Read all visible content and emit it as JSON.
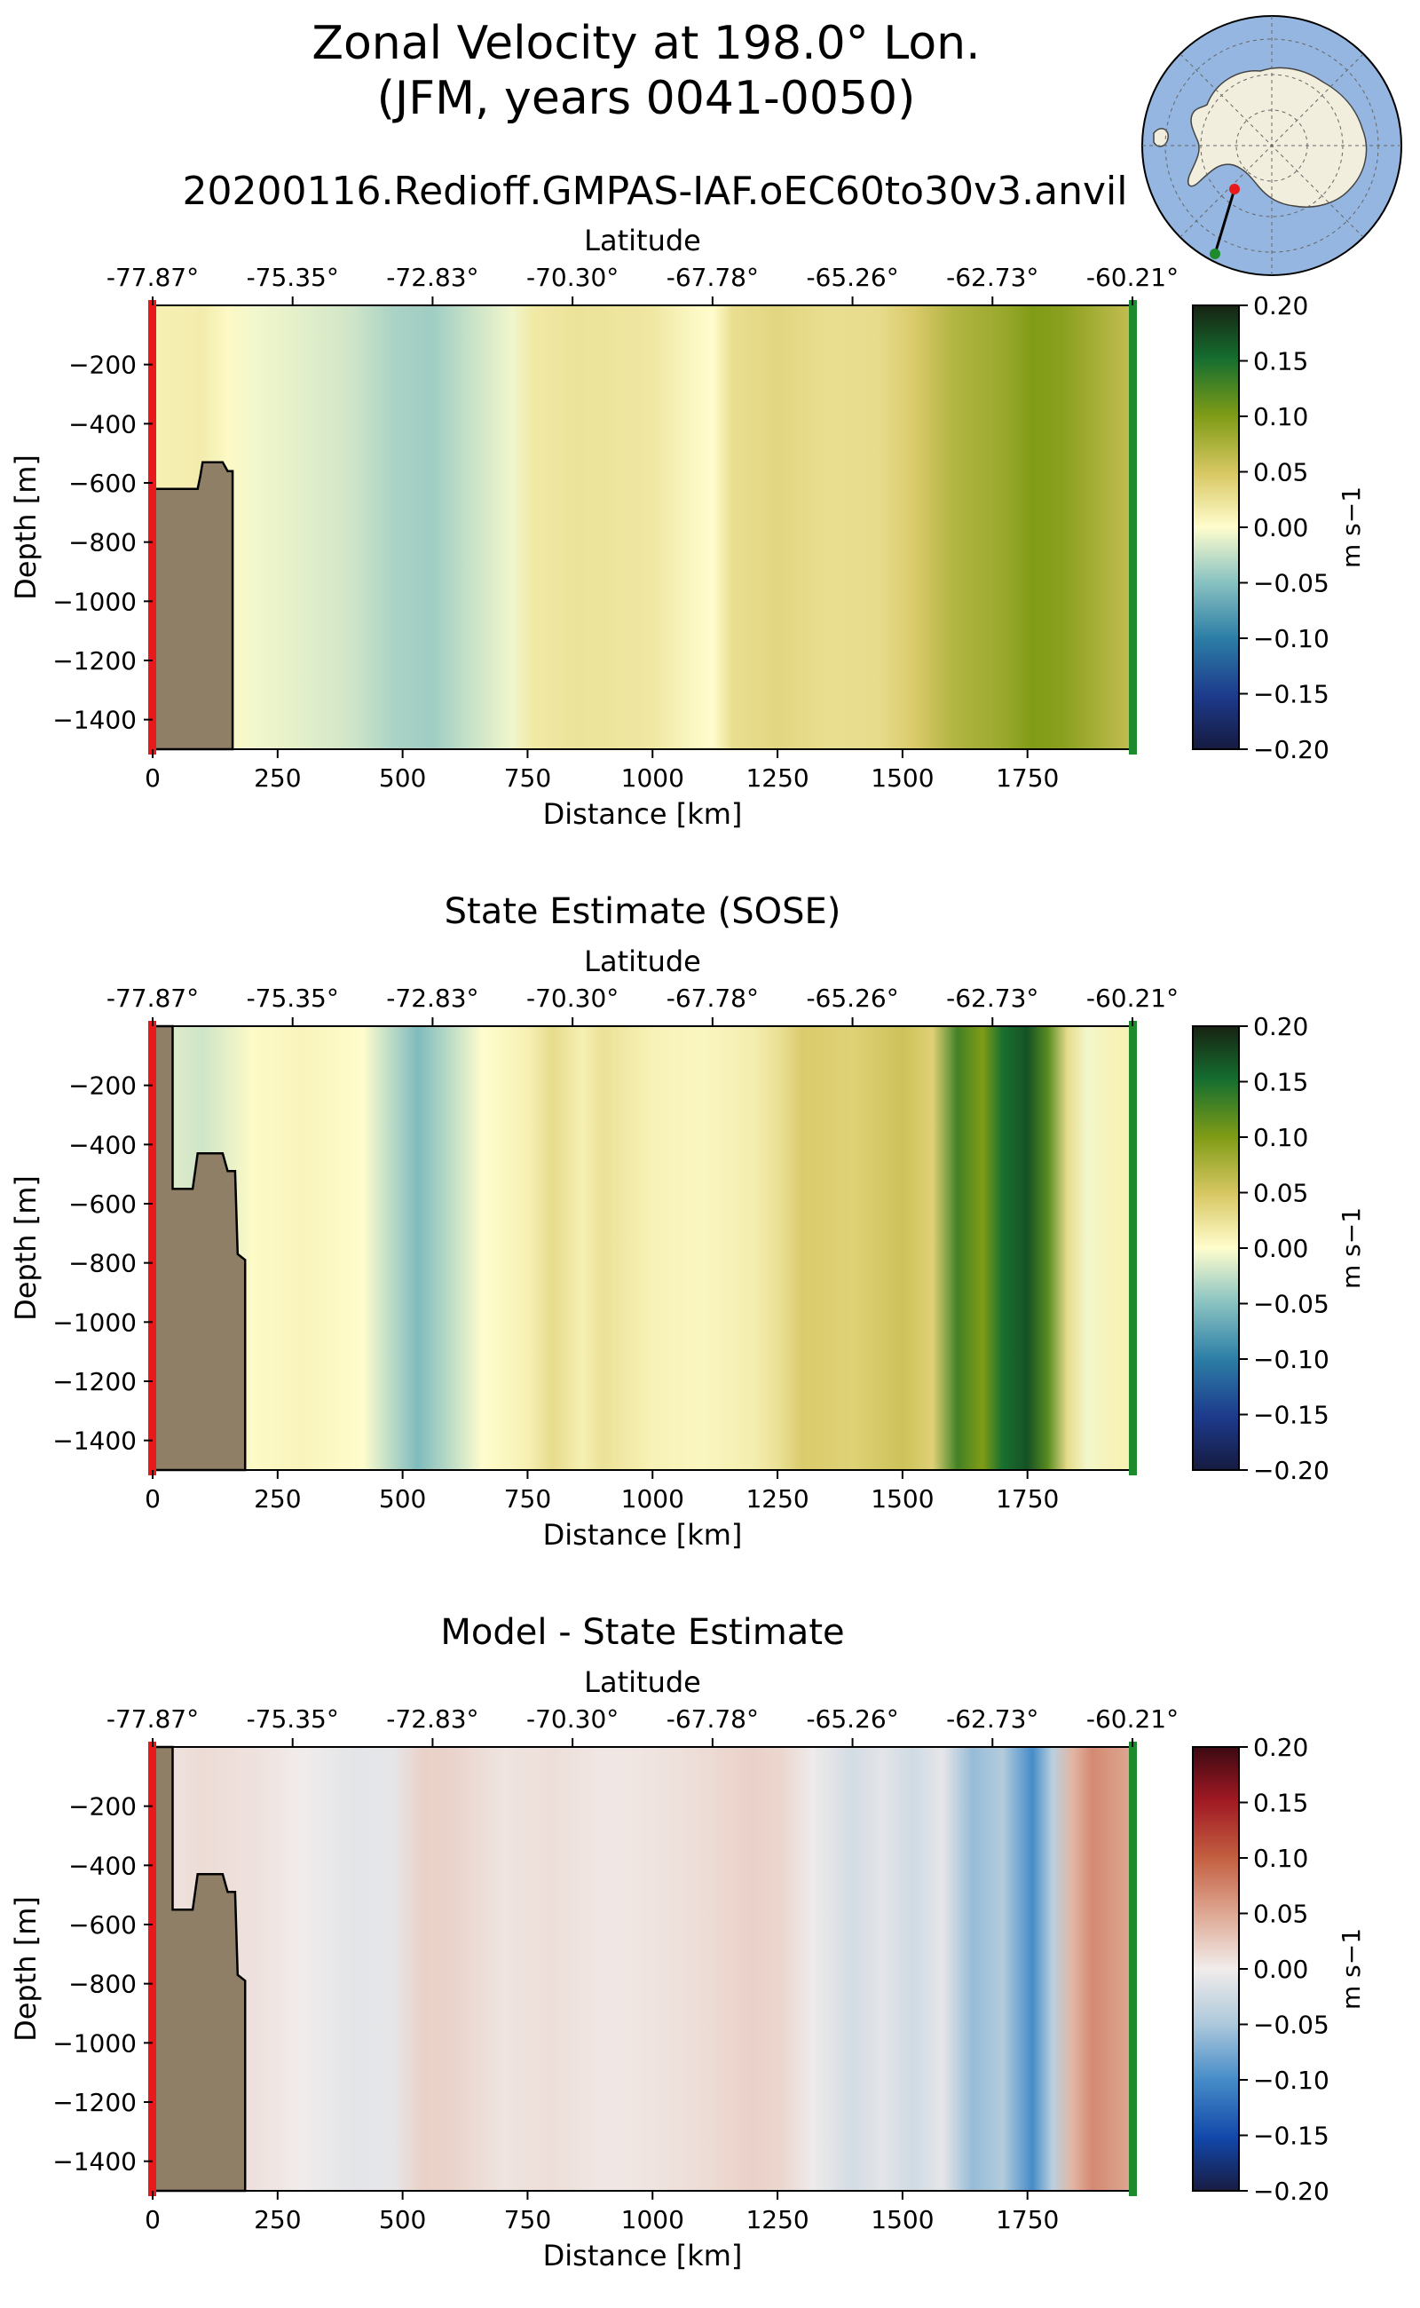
{
  "figure": {
    "title_line1": "Zonal Velocity at 198.0° Lon.",
    "title_line2": "(JFM, years 0041-0050)",
    "run_name": "20200116.Redioff.GMPAS-IAF.oEC60to30v3.anvil"
  },
  "inset_map": {
    "description_icon": "antarctica-map-icon",
    "ocean_color": "#95b6e0",
    "land_color": "#f2eedd",
    "start_marker_color": "#e8191b",
    "end_marker_color": "#1d8a2c"
  },
  "chart_data": [
    {
      "type": "heatmap",
      "title": "",
      "xlabel": "Distance [km]",
      "ylabel": "Depth [m]",
      "top_axis_label": "Latitude",
      "xlim": [
        0,
        1960
      ],
      "ylim": [
        -1500,
        0
      ],
      "x_ticks": [
        0,
        250,
        500,
        750,
        1000,
        1250,
        1500,
        1750
      ],
      "x_tick_labels": [
        "0",
        "250",
        "500",
        "750",
        "1000",
        "1250",
        "1500",
        "1750"
      ],
      "y_ticks": [
        -200,
        -400,
        -600,
        -800,
        -1000,
        -1200,
        -1400
      ],
      "y_tick_labels": [
        "−200",
        "−400",
        "−600",
        "−800",
        "−1000",
        "−1200",
        "−1400"
      ],
      "lat_ticks_km": [
        0,
        280,
        560,
        840,
        1120,
        1400,
        1680,
        1960
      ],
      "lat_tick_labels": [
        "-77.87°",
        "-75.35°",
        "-72.83°",
        "-70.30°",
        "-67.78°",
        "-65.26°",
        "-62.73°",
        "-60.21°"
      ],
      "colorbar": {
        "label": "m s−1",
        "min": -0.2,
        "max": 0.2,
        "tick_labels": [
          "0.20",
          "0.15",
          "0.10",
          "0.05",
          "0.00",
          "−0.05",
          "−0.10",
          "−0.15",
          "−0.20"
        ],
        "colormap": "delta"
      },
      "velocity_profile": {
        "distance_km": [
          0,
          100,
          150,
          200,
          300,
          400,
          480,
          560,
          640,
          720,
          760,
          850,
          1000,
          1080,
          1120,
          1160,
          1250,
          1350,
          1450,
          1520,
          1600,
          1700,
          1760,
          1820,
          1900,
          1960
        ],
        "value_ms": [
          0.012,
          0.015,
          0.004,
          -0.005,
          -0.012,
          -0.02,
          -0.035,
          -0.04,
          -0.022,
          -0.006,
          0.018,
          0.024,
          0.02,
          0.005,
          0.0,
          0.028,
          0.035,
          0.028,
          0.03,
          0.045,
          0.07,
          0.085,
          0.1,
          0.095,
          0.075,
          0.06
        ]
      },
      "bathymetry": {
        "distance_km": [
          0,
          0,
          10,
          10,
          90,
          95,
          100,
          140,
          150,
          150,
          160,
          160
        ],
        "depth_m": [
          -1500,
          -620,
          -620,
          -620,
          -620,
          -580,
          -530,
          -530,
          -560,
          -560,
          -560,
          -1500
        ]
      }
    },
    {
      "type": "heatmap",
      "title": "State Estimate (SOSE)",
      "xlabel": "Distance [km]",
      "ylabel": "Depth [m]",
      "top_axis_label": "Latitude",
      "xlim": [
        0,
        1960
      ],
      "ylim": [
        -1500,
        0
      ],
      "x_ticks": [
        0,
        250,
        500,
        750,
        1000,
        1250,
        1500,
        1750
      ],
      "x_tick_labels": [
        "0",
        "250",
        "500",
        "750",
        "1000",
        "1250",
        "1500",
        "1750"
      ],
      "y_ticks": [
        -200,
        -400,
        -600,
        -800,
        -1000,
        -1200,
        -1400
      ],
      "y_tick_labels": [
        "−200",
        "−400",
        "−600",
        "−800",
        "−1000",
        "−1200",
        "−1400"
      ],
      "lat_ticks_km": [
        0,
        280,
        560,
        840,
        1120,
        1400,
        1680,
        1960
      ],
      "lat_tick_labels": [
        "-77.87°",
        "-75.35°",
        "-72.83°",
        "-70.30°",
        "-67.78°",
        "-65.26°",
        "-62.73°",
        "-60.21°"
      ],
      "colorbar": {
        "label": "m s−1",
        "min": -0.2,
        "max": 0.2,
        "tick_labels": [
          "0.20",
          "0.15",
          "0.10",
          "0.05",
          "0.00",
          "−0.05",
          "−0.10",
          "−0.15",
          "−0.20"
        ],
        "colormap": "delta"
      },
      "velocity_profile": {
        "distance_km": [
          0,
          100,
          200,
          300,
          420,
          480,
          530,
          590,
          660,
          750,
          800,
          860,
          900,
          1000,
          1100,
          1200,
          1250,
          1300,
          1400,
          1500,
          1560,
          1610,
          1660,
          1700,
          1750,
          1790,
          1830,
          1870,
          1920,
          1960
        ],
        "value_ms": [
          -0.01,
          -0.02,
          0.003,
          0.008,
          0.0,
          -0.03,
          -0.055,
          -0.03,
          0.0,
          0.012,
          0.03,
          0.012,
          0.025,
          0.01,
          0.006,
          0.014,
          0.025,
          0.045,
          0.04,
          0.055,
          0.04,
          0.13,
          0.1,
          0.15,
          0.17,
          0.12,
          0.03,
          -0.005,
          0.01,
          0.012
        ]
      },
      "bathymetry": {
        "distance_km": [
          0,
          0,
          40,
          40,
          80,
          90,
          140,
          150,
          165,
          170,
          185,
          185
        ],
        "depth_m": [
          -1500,
          0,
          0,
          -550,
          -550,
          -430,
          -430,
          -490,
          -490,
          -770,
          -790,
          -1500
        ]
      }
    },
    {
      "type": "heatmap",
      "title": "Model - State Estimate",
      "xlabel": "Distance [km]",
      "ylabel": "Depth [m]",
      "top_axis_label": "Latitude",
      "xlim": [
        0,
        1960
      ],
      "ylim": [
        -1500,
        0
      ],
      "x_ticks": [
        0,
        250,
        500,
        750,
        1000,
        1250,
        1500,
        1750
      ],
      "x_tick_labels": [
        "0",
        "250",
        "500",
        "750",
        "1000",
        "1250",
        "1500",
        "1750"
      ],
      "y_ticks": [
        -200,
        -400,
        -600,
        -800,
        -1000,
        -1200,
        -1400
      ],
      "y_tick_labels": [
        "−200",
        "−400",
        "−600",
        "−800",
        "−1000",
        "−1200",
        "−1400"
      ],
      "lat_ticks_km": [
        0,
        280,
        560,
        840,
        1120,
        1400,
        1680,
        1960
      ],
      "lat_tick_labels": [
        "-77.87°",
        "-75.35°",
        "-72.83°",
        "-70.30°",
        "-67.78°",
        "-65.26°",
        "-62.73°",
        "-60.21°"
      ],
      "colorbar": {
        "label": "m s−1",
        "min": -0.2,
        "max": 0.2,
        "tick_labels": [
          "0.20",
          "0.15",
          "0.10",
          "0.05",
          "0.00",
          "−0.05",
          "−0.10",
          "−0.15",
          "−0.20"
        ],
        "colormap": "balance"
      },
      "velocity_profile": {
        "distance_km": [
          0,
          100,
          200,
          300,
          400,
          480,
          540,
          600,
          700,
          800,
          900,
          1000,
          1100,
          1200,
          1260,
          1320,
          1400,
          1460,
          1520,
          1580,
          1640,
          1700,
          1760,
          1800,
          1840,
          1880,
          1920,
          1960
        ],
        "value_ms": [
          0.005,
          0.012,
          0.008,
          0.0,
          -0.01,
          -0.008,
          0.02,
          0.018,
          0.006,
          0.01,
          0.004,
          0.006,
          0.012,
          0.02,
          0.015,
          -0.002,
          -0.022,
          -0.01,
          -0.025,
          -0.008,
          -0.06,
          -0.045,
          -0.1,
          -0.04,
          0.04,
          0.07,
          0.06,
          0.05
        ]
      },
      "bathymetry": {
        "distance_km": [
          0,
          0,
          40,
          40,
          80,
          90,
          140,
          150,
          165,
          170,
          185,
          185
        ],
        "depth_m": [
          -1500,
          0,
          0,
          -550,
          -550,
          -430,
          -430,
          -490,
          -490,
          -770,
          -790,
          -1500
        ]
      }
    }
  ]
}
